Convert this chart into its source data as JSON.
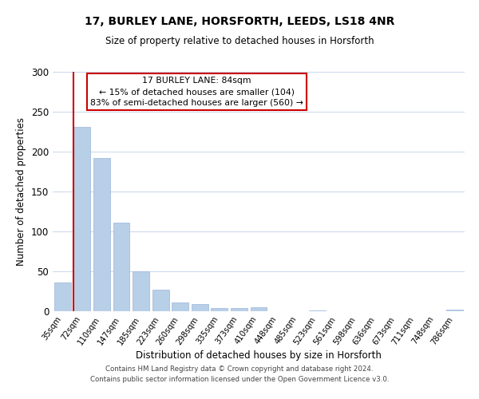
{
  "title": "17, BURLEY LANE, HORSFORTH, LEEDS, LS18 4NR",
  "subtitle": "Size of property relative to detached houses in Horsforth",
  "xlabel": "Distribution of detached houses by size in Horsforth",
  "ylabel": "Number of detached properties",
  "bar_labels": [
    "35sqm",
    "72sqm",
    "110sqm",
    "147sqm",
    "185sqm",
    "223sqm",
    "260sqm",
    "298sqm",
    "335sqm",
    "373sqm",
    "410sqm",
    "448sqm",
    "485sqm",
    "523sqm",
    "561sqm",
    "598sqm",
    "636sqm",
    "673sqm",
    "711sqm",
    "748sqm",
    "786sqm"
  ],
  "bar_values": [
    36,
    231,
    192,
    111,
    50,
    27,
    11,
    9,
    4,
    4,
    5,
    0,
    0,
    1,
    0,
    0,
    0,
    0,
    0,
    0,
    2
  ],
  "bar_color": "#b8cfe8",
  "bar_edgecolor": "#9bb5d8",
  "vline_color": "#cc0000",
  "vline_bar_index": 1,
  "ylim": [
    0,
    300
  ],
  "yticks": [
    0,
    50,
    100,
    150,
    200,
    250,
    300
  ],
  "annotation_title": "17 BURLEY LANE: 84sqm",
  "annotation_line1": "← 15% of detached houses are smaller (104)",
  "annotation_line2": "83% of semi-detached houses are larger (560) →",
  "annotation_box_color": "#ffffff",
  "annotation_box_edgecolor": "#cc0000",
  "footer_line1": "Contains HM Land Registry data © Crown copyright and database right 2024.",
  "footer_line2": "Contains public sector information licensed under the Open Government Licence v3.0.",
  "background_color": "#ffffff",
  "grid_color": "#c8d8ec"
}
